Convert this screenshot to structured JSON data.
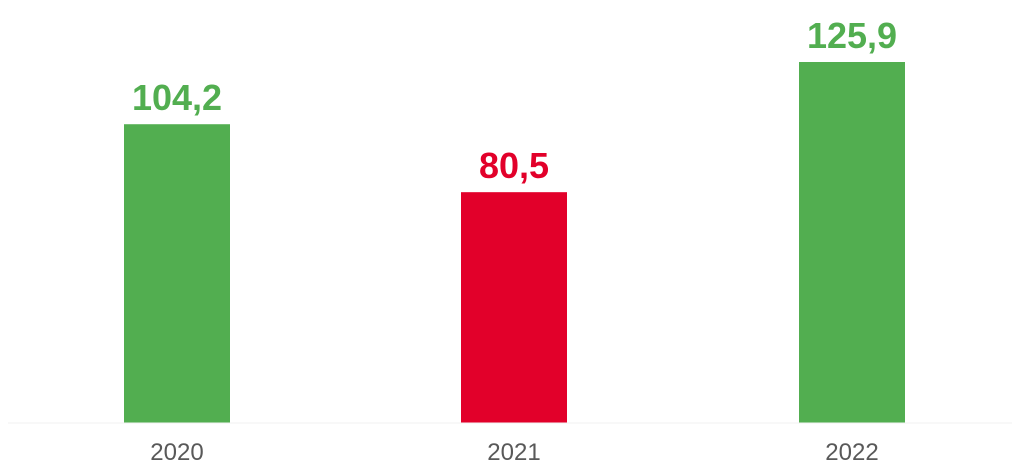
{
  "chart_data": {
    "type": "bar",
    "categories": [
      "2020",
      "2021",
      "2022"
    ],
    "values": [
      104.2,
      80.5,
      125.9
    ],
    "value_labels": [
      "104,2",
      "80,5",
      "125,9"
    ],
    "bar_colors": [
      "#52AE50",
      "#E2002A",
      "#52AE50"
    ],
    "ylim": [
      0,
      125.9
    ],
    "grid": false,
    "legend": "none",
    "axis_line_color": "#F2F2F2",
    "tick_label_color": "#595959"
  }
}
